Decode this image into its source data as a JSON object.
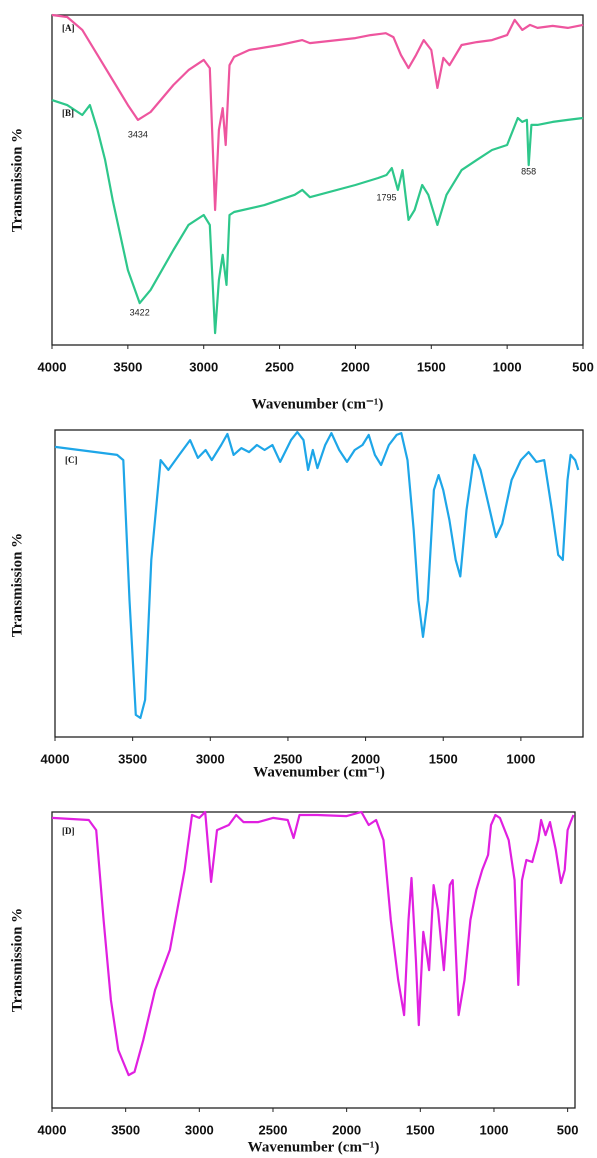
{
  "chart_data": [
    {
      "type": "line",
      "xlabel": "Wavenumber (cm⁻¹)",
      "ylabel": "Transmission %",
      "xlim": [
        4000,
        500
      ],
      "ylim": [
        0,
        100
      ],
      "xticks": [
        4000,
        3500,
        3000,
        2500,
        2000,
        1500,
        1000,
        500
      ],
      "series": [
        {
          "name": "[A]",
          "color": "#ee559e",
          "x": [
            4000,
            3900,
            3800,
            3700,
            3600,
            3500,
            3434,
            3350,
            3200,
            3100,
            3000,
            2960,
            2925,
            2900,
            2875,
            2855,
            2830,
            2800,
            2700,
            2500,
            2350,
            2300,
            2000,
            1900,
            1800,
            1750,
            1700,
            1650,
            1600,
            1550,
            1500,
            1460,
            1420,
            1380,
            1300,
            1200,
            1100,
            1000,
            950,
            900,
            850,
            800,
            700,
            600,
            500
          ],
          "values": [
            100,
            99.4,
            95.5,
            87.9,
            80.3,
            72.7,
            68.2,
            70.6,
            78.8,
            83.3,
            86.4,
            83.9,
            40.9,
            65.2,
            71.8,
            60.6,
            84.8,
            87.3,
            89.4,
            90.9,
            92.4,
            91.5,
            93.0,
            93.9,
            94.5,
            93.3,
            87.9,
            83.9,
            87.9,
            92.4,
            89.4,
            77.9,
            87.0,
            84.8,
            90.9,
            91.8,
            92.4,
            93.9,
            98.5,
            95.5,
            97.0,
            96.1,
            96.7,
            96.1,
            97.0
          ]
        },
        {
          "name": "[B]",
          "color": "#2ec78b",
          "x": [
            4000,
            3900,
            3800,
            3750,
            3700,
            3650,
            3600,
            3500,
            3422,
            3350,
            3200,
            3100,
            3000,
            2960,
            2925,
            2900,
            2875,
            2850,
            2830,
            2800,
            2600,
            2400,
            2350,
            2300,
            2000,
            1850,
            1795,
            1760,
            1720,
            1690,
            1650,
            1610,
            1560,
            1520,
            1460,
            1400,
            1300,
            1200,
            1100,
            1000,
            930,
            900,
            870,
            858,
            840,
            800,
            700,
            600,
            500
          ],
          "values": [
            74.2,
            72.7,
            69.7,
            72.7,
            65.2,
            56.1,
            43.9,
            22.7,
            12.7,
            16.7,
            28.8,
            36.4,
            39.4,
            36.4,
            3.6,
            19.7,
            27.3,
            18.2,
            39.4,
            40.3,
            42.4,
            45.5,
            47.0,
            44.8,
            48.5,
            50.6,
            51.5,
            53.6,
            47.0,
            53.0,
            37.9,
            40.9,
            48.5,
            45.5,
            36.4,
            45.5,
            53.0,
            56.1,
            59.1,
            60.6,
            68.8,
            67.6,
            68.2,
            54.5,
            66.7,
            66.7,
            67.6,
            68.2,
            68.8
          ]
        }
      ],
      "annotations": [
        {
          "text": "3434",
          "x": 3434,
          "y": 63.6
        },
        {
          "text": "3422",
          "x": 3422,
          "y": 9.7
        },
        {
          "text": "1795",
          "x": 1795,
          "y": 44.5
        },
        {
          "text": "858",
          "x": 858,
          "y": 52.4
        }
      ]
    },
    {
      "type": "line",
      "xlabel": "Wavenumber (cm⁻¹)",
      "ylabel": "Transmission %",
      "xlim": [
        4000,
        600
      ],
      "ylim": [
        0,
        100
      ],
      "xticks": [
        4000,
        3500,
        3000,
        2500,
        2000,
        1500,
        1000
      ],
      "series": [
        {
          "name": "[C]",
          "color": "#1ea6e8",
          "x": [
            4000,
            3600,
            3560,
            3520,
            3480,
            3450,
            3420,
            3380,
            3320,
            3270,
            3200,
            3130,
            3080,
            3030,
            2990,
            2930,
            2890,
            2850,
            2800,
            2750,
            2700,
            2650,
            2600,
            2550,
            2480,
            2440,
            2400,
            2370,
            2340,
            2310,
            2260,
            2220,
            2170,
            2120,
            2070,
            2020,
            1980,
            1940,
            1900,
            1850,
            1800,
            1770,
            1730,
            1690,
            1660,
            1630,
            1600,
            1560,
            1530,
            1500,
            1460,
            1420,
            1390,
            1350,
            1300,
            1260,
            1200,
            1160,
            1120,
            1060,
            1000,
            950,
            900,
            850,
            800,
            760,
            730,
            700,
            680,
            650,
            630
          ],
          "values": [
            94.5,
            91.9,
            90.2,
            44.6,
            7.2,
            6.2,
            12.1,
            57.7,
            90.2,
            87.0,
            91.9,
            96.7,
            90.9,
            93.5,
            90.2,
            95.1,
            98.7,
            91.9,
            94.1,
            92.8,
            95.1,
            93.5,
            95.1,
            89.6,
            96.7,
            99.3,
            96.7,
            87.0,
            93.5,
            87.6,
            95.1,
            99.0,
            93.5,
            89.6,
            93.5,
            95.1,
            98.4,
            91.9,
            88.6,
            95.1,
            98.4,
            99.0,
            90.2,
            67.4,
            44.6,
            32.6,
            44.6,
            80.5,
            85.3,
            80.5,
            70.7,
            57.7,
            52.3,
            73.9,
            91.9,
            87.0,
            73.9,
            65.1,
            69.4,
            83.7,
            90.2,
            92.8,
            89.6,
            90.2,
            73.9,
            59.3,
            57.7,
            83.7,
            91.9,
            90.2,
            87.0
          ]
        }
      ]
    },
    {
      "type": "line",
      "xlabel": "Wavenumber (cm⁻¹)",
      "ylabel": "Transmission %",
      "xlim": [
        4000,
        450
      ],
      "ylim": [
        0,
        100
      ],
      "xticks": [
        4000,
        3500,
        3000,
        2500,
        2000,
        1500,
        1000,
        500
      ],
      "series": [
        {
          "name": "[D]",
          "color": "#e020e0",
          "x": [
            4000,
            3750,
            3700,
            3650,
            3600,
            3550,
            3480,
            3440,
            3380,
            3300,
            3200,
            3100,
            3050,
            3000,
            2960,
            2920,
            2880,
            2800,
            2750,
            2700,
            2600,
            2500,
            2400,
            2360,
            2320,
            2200,
            2000,
            1900,
            1850,
            1800,
            1750,
            1700,
            1650,
            1610,
            1580,
            1560,
            1530,
            1510,
            1480,
            1460,
            1440,
            1410,
            1380,
            1340,
            1300,
            1280,
            1240,
            1200,
            1160,
            1120,
            1080,
            1040,
            1020,
            990,
            960,
            900,
            860,
            835,
            810,
            780,
            740,
            700,
            680,
            650,
            620,
            580,
            545,
            520,
            500,
            480,
            460
          ],
          "values": [
            98.0,
            97.3,
            93.9,
            63.5,
            36.5,
            19.6,
            11.1,
            12.2,
            23.0,
            39.9,
            53.4,
            80.4,
            99.0,
            98.0,
            100,
            76.4,
            93.9,
            95.6,
            99.0,
            96.6,
            96.6,
            98.0,
            97.3,
            91.2,
            99.0,
            99.0,
            98.6,
            100,
            95.6,
            97.3,
            90.5,
            63.5,
            43.2,
            31.4,
            63.5,
            77.7,
            50.0,
            28.0,
            59.5,
            53.4,
            46.6,
            75.3,
            66.9,
            46.6,
            75.3,
            77.0,
            31.4,
            43.2,
            63.5,
            73.6,
            80.4,
            85.5,
            95.6,
            99.0,
            98.0,
            90.5,
            77.0,
            41.6,
            77.0,
            83.8,
            83.1,
            90.5,
            97.3,
            92.2,
            96.6,
            87.2,
            76.0,
            80.4,
            93.9,
            96.6,
            99.0
          ]
        }
      ]
    }
  ]
}
